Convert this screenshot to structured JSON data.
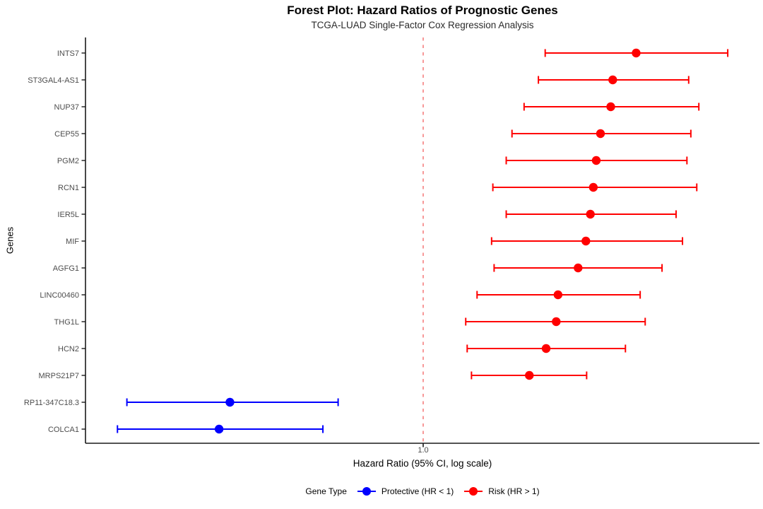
{
  "title": "Forest Plot: Hazard Ratios of Prognostic Genes",
  "subtitle": "TCGA-LUAD Single-Factor Cox Regression Analysis",
  "y_axis": {
    "label": "Genes"
  },
  "x_axis": {
    "label": "Hazard Ratio (95% CI, log scale)",
    "tick_label": "1.0",
    "reference_value": 1.0
  },
  "legend": {
    "title": "Gene Type",
    "items": [
      {
        "label": "Protective (HR < 1)",
        "color": "#0000FF"
      },
      {
        "label": "Risk (HR > 1)",
        "color": "#FF0000"
      }
    ]
  },
  "colors": {
    "protective": "#0000FF",
    "risk": "#FF0000",
    "reference_line": "#F57E7E",
    "axis_line": "#1a1a1a",
    "tick_text": "#4d4d4d"
  },
  "chart_data": {
    "type": "scatter",
    "variant": "forest-plot",
    "x_scale": "log10",
    "x_domain": [
      0.16,
      6.2
    ],
    "reference_line": 1.0,
    "grid": false,
    "legend_position": "bottom",
    "series": [
      {
        "gene": "INTS7",
        "hr": 3.18,
        "ci_lower": 1.94,
        "ci_upper": 5.23,
        "group": "risk"
      },
      {
        "gene": "ST3GAL4-AS1",
        "hr": 2.8,
        "ci_lower": 1.87,
        "ci_upper": 4.23,
        "group": "risk"
      },
      {
        "gene": "NUP37",
        "hr": 2.77,
        "ci_lower": 1.73,
        "ci_upper": 4.47,
        "group": "risk"
      },
      {
        "gene": "CEP55",
        "hr": 2.62,
        "ci_lower": 1.62,
        "ci_upper": 4.28,
        "group": "risk"
      },
      {
        "gene": "PGM2",
        "hr": 2.56,
        "ci_lower": 1.57,
        "ci_upper": 4.19,
        "group": "risk"
      },
      {
        "gene": "RCN1",
        "hr": 2.52,
        "ci_lower": 1.46,
        "ci_upper": 4.42,
        "group": "risk"
      },
      {
        "gene": "IER5L",
        "hr": 2.48,
        "ci_lower": 1.57,
        "ci_upper": 3.95,
        "group": "risk"
      },
      {
        "gene": "MIF",
        "hr": 2.42,
        "ci_lower": 1.45,
        "ci_upper": 4.09,
        "group": "risk"
      },
      {
        "gene": "AGFG1",
        "hr": 2.32,
        "ci_lower": 1.47,
        "ci_upper": 3.66,
        "group": "risk"
      },
      {
        "gene": "LINC00460",
        "hr": 2.08,
        "ci_lower": 1.34,
        "ci_upper": 3.25,
        "group": "risk"
      },
      {
        "gene": "THG1L",
        "hr": 2.06,
        "ci_lower": 1.26,
        "ci_upper": 3.34,
        "group": "risk"
      },
      {
        "gene": "HCN2",
        "hr": 1.95,
        "ci_lower": 1.27,
        "ci_upper": 3.0,
        "group": "risk"
      },
      {
        "gene": "MRPS21P7",
        "hr": 1.78,
        "ci_lower": 1.3,
        "ci_upper": 2.43,
        "group": "risk"
      },
      {
        "gene": "RP11-347C18.3",
        "hr": 0.35,
        "ci_lower": 0.2,
        "ci_upper": 0.63,
        "group": "protective"
      },
      {
        "gene": "COLCA1",
        "hr": 0.33,
        "ci_lower": 0.19,
        "ci_upper": 0.58,
        "group": "protective"
      }
    ]
  }
}
